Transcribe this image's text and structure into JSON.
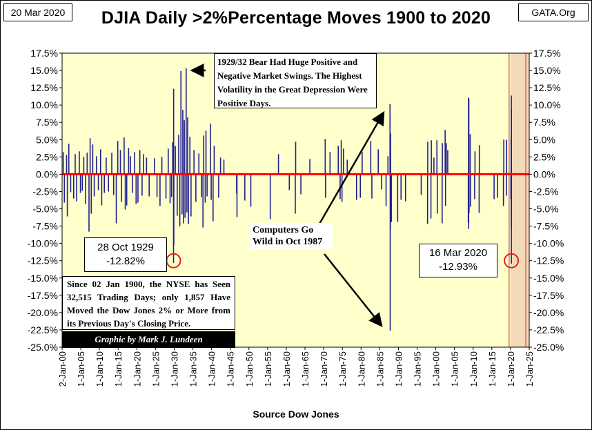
{
  "header": {
    "date_label": "20 Mar 2020",
    "site_label": "GATA.Org",
    "title": "DJIA Daily >2%Percentage Moves 1900 to 2020"
  },
  "colors": {
    "plot_background": "#ffffcc",
    "bar_color": "#1f1f8f",
    "zero_line": "#ff0000",
    "highlight_region": "#f2d9b8",
    "circle_color": "#e02020"
  },
  "chart_data": {
    "type": "bar",
    "title": "DJIA Daily >2%Percentage Moves 1900 to 2020",
    "xlabel": "Source Dow Jones",
    "ylabel": "",
    "x_unit": "year",
    "xlim": [
      1900,
      2025
    ],
    "ylim": [
      -25,
      17.5
    ],
    "grid": false,
    "y_ticks": [
      "17.5%",
      "15.0%",
      "12.5%",
      "10.0%",
      "7.5%",
      "5.0%",
      "2.5%",
      "0.0%",
      "-2.5%",
      "-5.0%",
      "-7.5%",
      "-10.0%",
      "-12.5%",
      "-15.0%",
      "-17.5%",
      "-20.0%",
      "-22.5%",
      "-25.0%"
    ],
    "x_ticks": [
      "2-Jan-00",
      "1-Jan-05",
      "1-Jan-10",
      "1-Jan-15",
      "1-Jan-20",
      "1-Jan-25",
      "1-Jan-30",
      "1-Jan-35",
      "1-Jan-40",
      "1-Jan-45",
      "1-Jan-50",
      "1-Jan-55",
      "1-Jan-60",
      "1-Jan-65",
      "1-Jan-70",
      "1-Jan-75",
      "1-Jan-80",
      "1-Jan-85",
      "1-Jan-90",
      "1-Jan-95",
      "1-Jan-00",
      "1-Jan-05",
      "1-Jan-10",
      "1-Jan-15",
      "1-Jan-20",
      "1-Jan-25"
    ],
    "x_tick_years": [
      1900,
      1905,
      1910,
      1915,
      1920,
      1925,
      1930,
      1935,
      1940,
      1945,
      1950,
      1955,
      1960,
      1965,
      1970,
      1975,
      1980,
      1985,
      1990,
      1995,
      2000,
      2005,
      2010,
      2015,
      2020,
      2025
    ],
    "highlight_range": [
      2020,
      2025
    ],
    "series": [
      {
        "points": [
          [
            1900.3,
            3.2
          ],
          [
            1900.6,
            -4.1
          ],
          [
            1901.2,
            2.8
          ],
          [
            1901.4,
            -6.1
          ],
          [
            1901.8,
            4.4
          ],
          [
            1902.3,
            -2.6
          ],
          [
            1903.1,
            -3.5
          ],
          [
            1903.5,
            2.9
          ],
          [
            1903.9,
            -3.9
          ],
          [
            1904.6,
            3.3
          ],
          [
            1904.9,
            -2.7
          ],
          [
            1905.4,
            -2.4
          ],
          [
            1905.8,
            2.5
          ],
          [
            1906.3,
            -4.3
          ],
          [
            1906.7,
            3.1
          ],
          [
            1907.2,
            -8.3
          ],
          [
            1907.5,
            5.2
          ],
          [
            1907.8,
            -5.7
          ],
          [
            1908.2,
            4.3
          ],
          [
            1908.6,
            -3.2
          ],
          [
            1909.2,
            2.6
          ],
          [
            1909.7,
            -2.3
          ],
          [
            1910.3,
            3.6
          ],
          [
            1910.6,
            -4.5
          ],
          [
            1911.3,
            -2.7
          ],
          [
            1911.8,
            2.4
          ],
          [
            1912.4,
            -2.5
          ],
          [
            1913.3,
            3.1
          ],
          [
            1913.8,
            -3.0
          ],
          [
            1914.5,
            -7.1
          ],
          [
            1914.9,
            4.8
          ],
          [
            1915.6,
            3.5
          ],
          [
            1915.9,
            -4.0
          ],
          [
            1916.6,
            5.3
          ],
          [
            1916.9,
            -5.1
          ],
          [
            1917.3,
            -4.5
          ],
          [
            1917.8,
            3.8
          ],
          [
            1918.3,
            2.6
          ],
          [
            1918.8,
            -2.7
          ],
          [
            1919.4,
            3.2
          ],
          [
            1919.8,
            -4.3
          ],
          [
            1920.3,
            -4.1
          ],
          [
            1920.8,
            3.5
          ],
          [
            1921.4,
            -3.1
          ],
          [
            1921.8,
            2.9
          ],
          [
            1922.6,
            2.4
          ],
          [
            1923.3,
            -3.2
          ],
          [
            1924.7,
            2.3
          ],
          [
            1925.4,
            -3.3
          ],
          [
            1926.2,
            -4.6
          ],
          [
            1926.7,
            2.5
          ],
          [
            1927.8,
            -3.5
          ],
          [
            1928.4,
            3.7
          ],
          [
            1928.9,
            -4.2
          ],
          [
            1929.3,
            -3.3
          ],
          [
            1929.6,
            4.6
          ],
          [
            1929.82,
            -12.82
          ],
          [
            1929.85,
            12.34
          ],
          [
            1929.9,
            -10.2
          ],
          [
            1930.3,
            4.1
          ],
          [
            1930.8,
            -6.0
          ],
          [
            1931.2,
            5.7
          ],
          [
            1931.5,
            -7.5
          ],
          [
            1931.8,
            14.9
          ],
          [
            1932.1,
            -5.8
          ],
          [
            1932.3,
            9.3
          ],
          [
            1932.5,
            -7.1
          ],
          [
            1932.7,
            7.8
          ],
          [
            1932.9,
            -6.3
          ],
          [
            1933.2,
            15.3
          ],
          [
            1933.4,
            -5.5
          ],
          [
            1933.6,
            8.2
          ],
          [
            1933.8,
            -7.2
          ],
          [
            1934.2,
            5.4
          ],
          [
            1934.5,
            -6.1
          ],
          [
            1935.3,
            3.5
          ],
          [
            1935.8,
            -4.0
          ],
          [
            1936.6,
            3.0
          ],
          [
            1937.3,
            -3.3
          ],
          [
            1937.7,
            -7.7
          ],
          [
            1937.9,
            5.6
          ],
          [
            1938.3,
            -4.1
          ],
          [
            1938.5,
            6.3
          ],
          [
            1938.8,
            -3.2
          ],
          [
            1939.7,
            7.3
          ],
          [
            1939.9,
            -3.7
          ],
          [
            1940.4,
            -6.8
          ],
          [
            1940.7,
            4.1
          ],
          [
            1941.9,
            -3.4
          ],
          [
            1942.4,
            2.4
          ],
          [
            1943.3,
            2.1
          ],
          [
            1946.7,
            -2.8
          ],
          [
            1946.8,
            -6.2
          ],
          [
            1948.9,
            -3.8
          ],
          [
            1950.5,
            -4.7
          ],
          [
            1955.7,
            -6.5
          ],
          [
            1957.9,
            2.9
          ],
          [
            1960.8,
            -2.3
          ],
          [
            1962.4,
            -5.7
          ],
          [
            1962.5,
            4.7
          ],
          [
            1963.9,
            -2.9
          ],
          [
            1966.3,
            2.2
          ],
          [
            1970.4,
            5.1
          ],
          [
            1970.5,
            -3.4
          ],
          [
            1971.7,
            3.2
          ],
          [
            1973.9,
            4.1
          ],
          [
            1974.4,
            -3.6
          ],
          [
            1974.7,
            4.9
          ],
          [
            1974.9,
            -4.0
          ],
          [
            1975.3,
            3.7
          ],
          [
            1976.3,
            2.1
          ],
          [
            1978.8,
            -3.7
          ],
          [
            1979.8,
            -3.4
          ],
          [
            1980.3,
            3.2
          ],
          [
            1982.6,
            4.8
          ],
          [
            1982.9,
            -3.5
          ],
          [
            1984.6,
            3.6
          ],
          [
            1985.5,
            -2.2
          ],
          [
            1986.7,
            -4.6
          ],
          [
            1987.2,
            2.6
          ],
          [
            1987.75,
            10.15
          ],
          [
            1987.8,
            -22.61
          ],
          [
            1987.85,
            -8.0
          ],
          [
            1987.9,
            5.9
          ],
          [
            1988.1,
            -6.9
          ],
          [
            1989.8,
            -6.9
          ],
          [
            1990.7,
            -3.7
          ],
          [
            1991.9,
            -3.9
          ],
          [
            1996.1,
            -3.0
          ],
          [
            1997.8,
            -7.2
          ],
          [
            1997.85,
            4.7
          ],
          [
            1998.7,
            -6.4
          ],
          [
            1998.8,
            4.9
          ],
          [
            1999.5,
            2.4
          ],
          [
            2000.3,
            4.9
          ],
          [
            2000.4,
            -5.7
          ],
          [
            2001.7,
            -7.1
          ],
          [
            2001.75,
            4.5
          ],
          [
            2002.5,
            6.4
          ],
          [
            2002.6,
            -4.6
          ],
          [
            2002.8,
            4.5
          ],
          [
            2003.2,
            3.5
          ],
          [
            2008.7,
            -7.0
          ],
          [
            2008.75,
            11.1
          ],
          [
            2008.8,
            -7.9
          ],
          [
            2008.85,
            10.9
          ],
          [
            2008.9,
            -5.6
          ],
          [
            2009.2,
            5.8
          ],
          [
            2009.3,
            -4.7
          ],
          [
            2010.4,
            -3.6
          ],
          [
            2010.5,
            3.3
          ],
          [
            2011.6,
            -5.6
          ],
          [
            2011.65,
            4.2
          ],
          [
            2015.6,
            -3.6
          ],
          [
            2016.5,
            -3.4
          ],
          [
            2018.1,
            -4.6
          ],
          [
            2018.2,
            5.0
          ],
          [
            2018.9,
            -3.1
          ],
          [
            2018.95,
            4.98
          ],
          [
            2020.1,
            -3.6
          ],
          [
            2020.15,
            5.1
          ],
          [
            2020.2,
            -7.8
          ],
          [
            2020.21,
            11.37
          ],
          [
            2020.22,
            -12.93
          ],
          [
            2020.23,
            9.36
          ],
          [
            2020.24,
            -6.3
          ]
        ]
      }
    ],
    "annotations": {
      "bear_1929": "1929/32  Bear  Had  Huge Positive and Negative  Market Swings.  The Highest Volatility in the Great Depression Were Positive Days.",
      "crash_1929_date": "28 Oct 1929",
      "crash_1929_value": "-12.82%",
      "crash_2020_date": "16 Mar 2020",
      "crash_2020_value": "-12.93%",
      "computers": "Computers Go Wild in Oct 1987",
      "since_1900": "Since 02  Jan 1900,  the NYSE has Seen 32,515  Trading  Days;  only 1,857  Have Moved the Dow Jones 2% or More from its Previous Day's Closing Price.",
      "credit": "Graphic by Mark J. Lundeen",
      "source": "Source Dow Jones"
    }
  }
}
